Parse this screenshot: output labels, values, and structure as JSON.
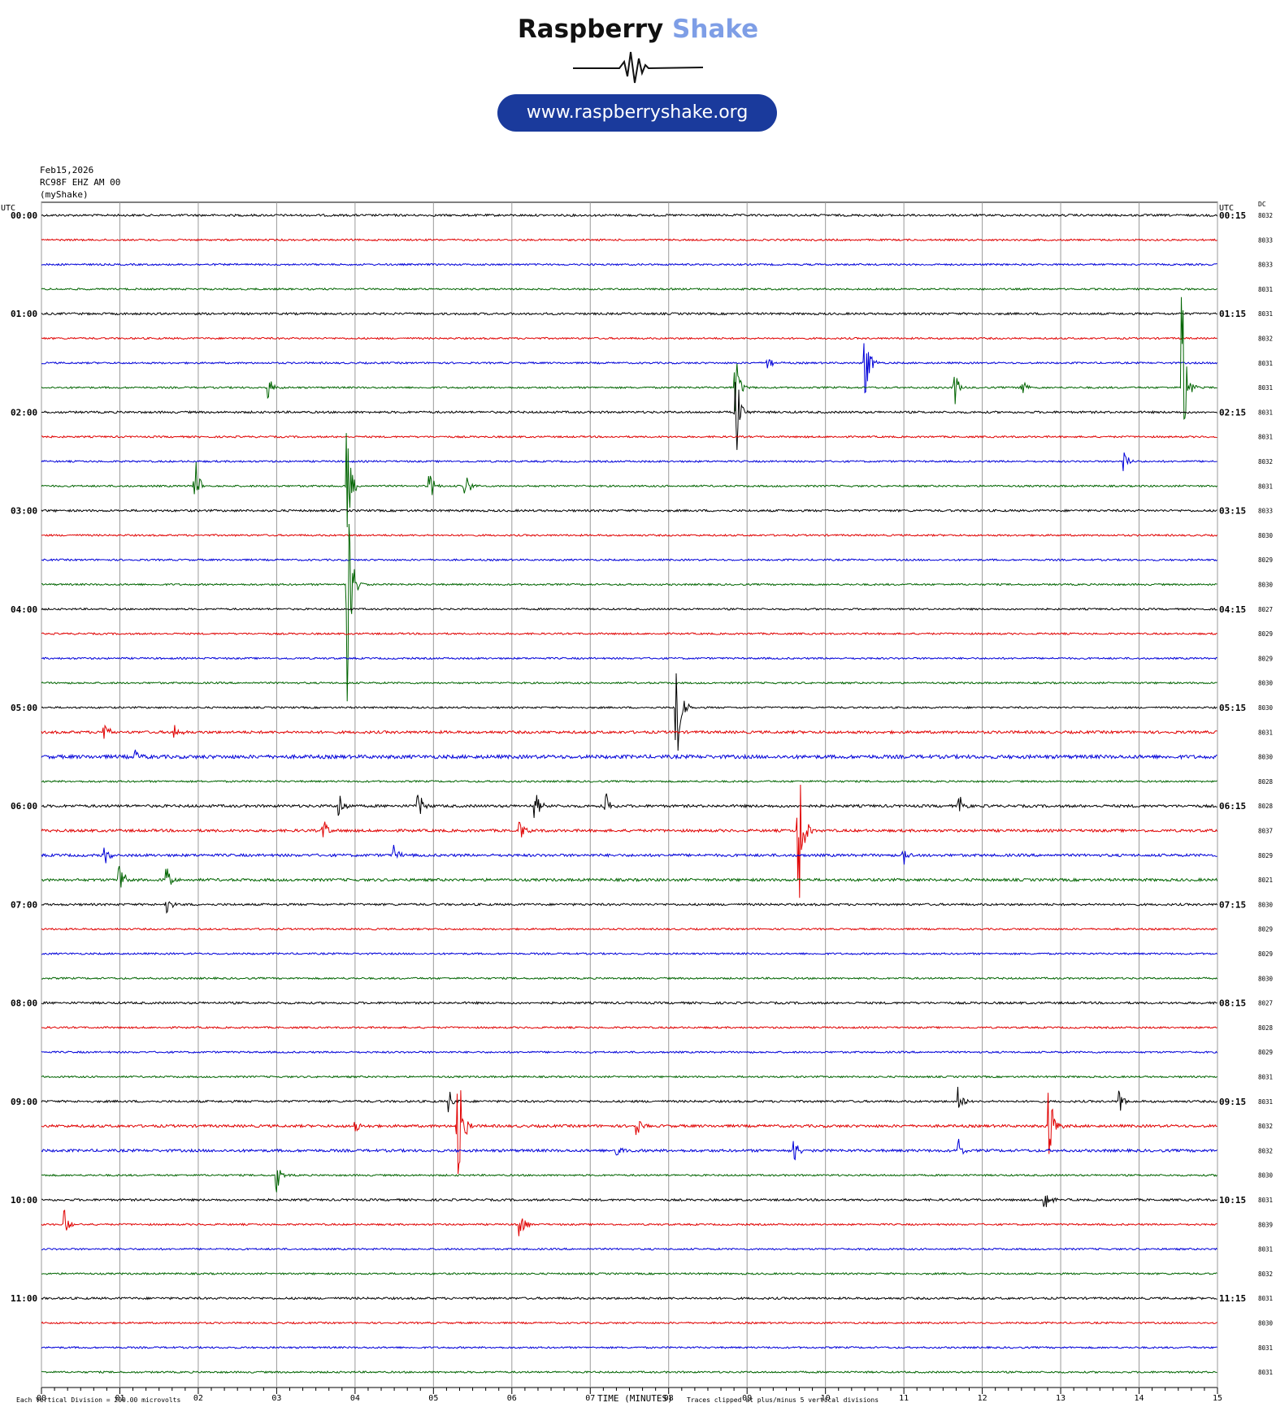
{
  "logo": {
    "word1": "Raspberry",
    "word2": "Shake",
    "url": "www.raspberryshake.org"
  },
  "header": {
    "date": "Feb15,2026",
    "station": "RC98F EHZ AM 00",
    "source": "(myShake)"
  },
  "footer": {
    "scale_note": "Each Vertical Division =  200.00 microvolts",
    "xlabel": "TIME (MINUTES)",
    "clip_note": "Traces clipped at plus/minus 5 vertical divisions"
  },
  "colors": {
    "black": "#000000",
    "red": "#e00000",
    "blue": "#0000d8",
    "green": "#006400"
  },
  "chart_data": {
    "type": "line",
    "xlabel": "TIME (MINUTES)",
    "xlim": [
      0,
      15
    ],
    "x_ticks": [
      "00",
      "01",
      "02",
      "03",
      "04",
      "05",
      "06",
      "07",
      "08",
      "09",
      "10",
      "11",
      "12",
      "13",
      "14",
      "15"
    ],
    "left_axis_label": "UTC",
    "right_axis_label": "UTC",
    "dc_label": "DC",
    "row_colors": [
      "black",
      "red",
      "blue",
      "green"
    ],
    "hour_labels_left": [
      "00:00",
      "01:00",
      "02:00",
      "03:00",
      "04:00",
      "05:00",
      "06:00",
      "07:00",
      "08:00",
      "09:00",
      "10:00",
      "11:00"
    ],
    "hour_labels_right": [
      "00:15",
      "01:15",
      "02:15",
      "03:15",
      "04:15",
      "05:15",
      "06:15",
      "07:15",
      "08:15",
      "09:15",
      "10:15",
      "11:15"
    ],
    "dc_offsets": [
      "8032",
      "8033",
      "8033",
      "8031",
      "8031",
      "8032",
      "8031",
      "8031",
      "8031",
      "8031",
      "8032",
      "8031",
      "8033",
      "8030",
      "8029",
      "8030",
      "8027",
      "8029",
      "8029",
      "8030",
      "8030",
      "8031",
      "8030",
      "8028",
      "8028",
      "8037",
      "8029",
      "8021",
      "8030",
      "8029",
      "8029",
      "8030",
      "8027",
      "8028",
      "8029",
      "8031",
      "8031",
      "8032",
      "8032",
      "8030",
      "8031",
      "8039",
      "8031",
      "8032",
      "8031",
      "8030",
      "8031",
      "8031"
    ],
    "noise_level": [
      1.2,
      1,
      1,
      1,
      1.2,
      1,
      1,
      1,
      1.2,
      1,
      1,
      1,
      1.2,
      1,
      1,
      1,
      1,
      1,
      1,
      1,
      1,
      1.5,
      2,
      1,
      1.5,
      1.5,
      1.5,
      1.5,
      1.2,
      1,
      1,
      1,
      1.2,
      1,
      1,
      1,
      1.2,
      1.5,
      1.5,
      1,
      1.2,
      1,
      1,
      1,
      1.2,
      1,
      1,
      1
    ],
    "events": [
      {
        "row": 6,
        "x": 10.5,
        "amp": 2.0
      },
      {
        "row": 6,
        "x": 9.25,
        "amp": 0.6
      },
      {
        "row": 7,
        "x": 8.85,
        "amp": 1.6
      },
      {
        "row": 7,
        "x": 11.65,
        "amp": 0.8
      },
      {
        "row": 7,
        "x": 12.5,
        "amp": 0.7
      },
      {
        "row": 7,
        "x": 14.55,
        "amp": 4.2
      },
      {
        "row": 7,
        "x": 2.9,
        "amp": 0.5
      },
      {
        "row": 8,
        "x": 8.85,
        "amp": 2.6
      },
      {
        "row": 10,
        "x": 13.8,
        "amp": 0.6
      },
      {
        "row": 11,
        "x": 1.95,
        "amp": 1.8
      },
      {
        "row": 11,
        "x": 3.9,
        "amp": 2.2
      },
      {
        "row": 11,
        "x": 4.95,
        "amp": 0.7
      },
      {
        "row": 11,
        "x": 5.4,
        "amp": 0.8
      },
      {
        "row": 15,
        "x": 3.9,
        "amp": 5.0
      },
      {
        "row": 20,
        "x": 8.1,
        "amp": 4.0
      },
      {
        "row": 21,
        "x": 0.8,
        "amp": 0.5
      },
      {
        "row": 21,
        "x": 1.7,
        "amp": 0.4
      },
      {
        "row": 22,
        "x": 1.2,
        "amp": 0.3
      },
      {
        "row": 24,
        "x": 3.8,
        "amp": 0.8
      },
      {
        "row": 24,
        "x": 4.8,
        "amp": 0.8
      },
      {
        "row": 24,
        "x": 6.3,
        "amp": 0.7
      },
      {
        "row": 24,
        "x": 7.2,
        "amp": 0.6
      },
      {
        "row": 24,
        "x": 11.7,
        "amp": 0.7
      },
      {
        "row": 25,
        "x": 9.65,
        "amp": 5.0
      },
      {
        "row": 25,
        "x": 3.6,
        "amp": 0.5
      },
      {
        "row": 25,
        "x": 6.1,
        "amp": 0.6
      },
      {
        "row": 26,
        "x": 0.8,
        "amp": 0.6
      },
      {
        "row": 26,
        "x": 4.5,
        "amp": 0.5
      },
      {
        "row": 26,
        "x": 11.0,
        "amp": 0.5
      },
      {
        "row": 27,
        "x": 1.0,
        "amp": 0.9
      },
      {
        "row": 27,
        "x": 1.6,
        "amp": 0.6
      },
      {
        "row": 28,
        "x": 1.6,
        "amp": 0.5
      },
      {
        "row": 36,
        "x": 5.2,
        "amp": 0.5
      },
      {
        "row": 36,
        "x": 11.7,
        "amp": 0.6
      },
      {
        "row": 36,
        "x": 13.75,
        "amp": 0.6
      },
      {
        "row": 37,
        "x": 5.3,
        "amp": 5.0
      },
      {
        "row": 37,
        "x": 12.85,
        "amp": 2.2
      },
      {
        "row": 37,
        "x": 4.0,
        "amp": 0.4
      },
      {
        "row": 37,
        "x": 7.6,
        "amp": 0.5
      },
      {
        "row": 38,
        "x": 7.3,
        "amp": 0.7
      },
      {
        "row": 38,
        "x": 9.6,
        "amp": 0.6
      },
      {
        "row": 38,
        "x": 11.7,
        "amp": 0.5
      },
      {
        "row": 39,
        "x": 3.0,
        "amp": 0.8
      },
      {
        "row": 40,
        "x": 12.8,
        "amp": 0.6
      },
      {
        "row": 41,
        "x": 6.1,
        "amp": 0.8
      },
      {
        "row": 41,
        "x": 0.3,
        "amp": 0.6
      }
    ]
  }
}
